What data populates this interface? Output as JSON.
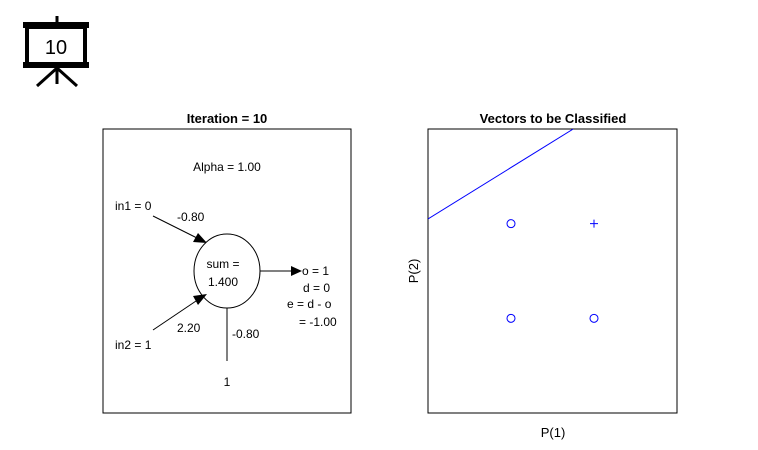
{
  "badge": {
    "icon": "presentation-board-icon",
    "number": "10"
  },
  "network": {
    "title": "Iteration = 10",
    "alpha": "Alpha = 1.00",
    "in1": "in1 = 0",
    "w1": "-0.80",
    "in2": "in2 = 1",
    "w2": "2.20",
    "bias_weight": "-0.80",
    "bias_input": "1",
    "sum_label": "sum =",
    "sum_value": "1.400",
    "output": "o = 1",
    "desired": "d = 0",
    "error_formula": "e = d - o",
    "error_value": "= -1.00"
  },
  "plot": {
    "title": "Vectors to be Classified",
    "xlabel": "P(1)",
    "ylabel": "P(2)"
  },
  "chart_data": {
    "type": "scatter",
    "title": "Vectors to be Classified",
    "xlabel": "P(1)",
    "ylabel": "P(2)",
    "xlim": [
      -1,
      2
    ],
    "ylim": [
      -1,
      2
    ],
    "grid": false,
    "series": [
      {
        "marker": "o",
        "color": "#0000ff",
        "x": [
          0,
          0,
          1
        ],
        "y": [
          0,
          1,
          0
        ]
      },
      {
        "marker": "+",
        "color": "#0000ff",
        "x": [
          1
        ],
        "y": [
          1
        ]
      }
    ],
    "decision_boundary": {
      "color": "#0000ff",
      "x": [
        -1,
        0.75
      ],
      "y": [
        1.05,
        2
      ]
    }
  }
}
